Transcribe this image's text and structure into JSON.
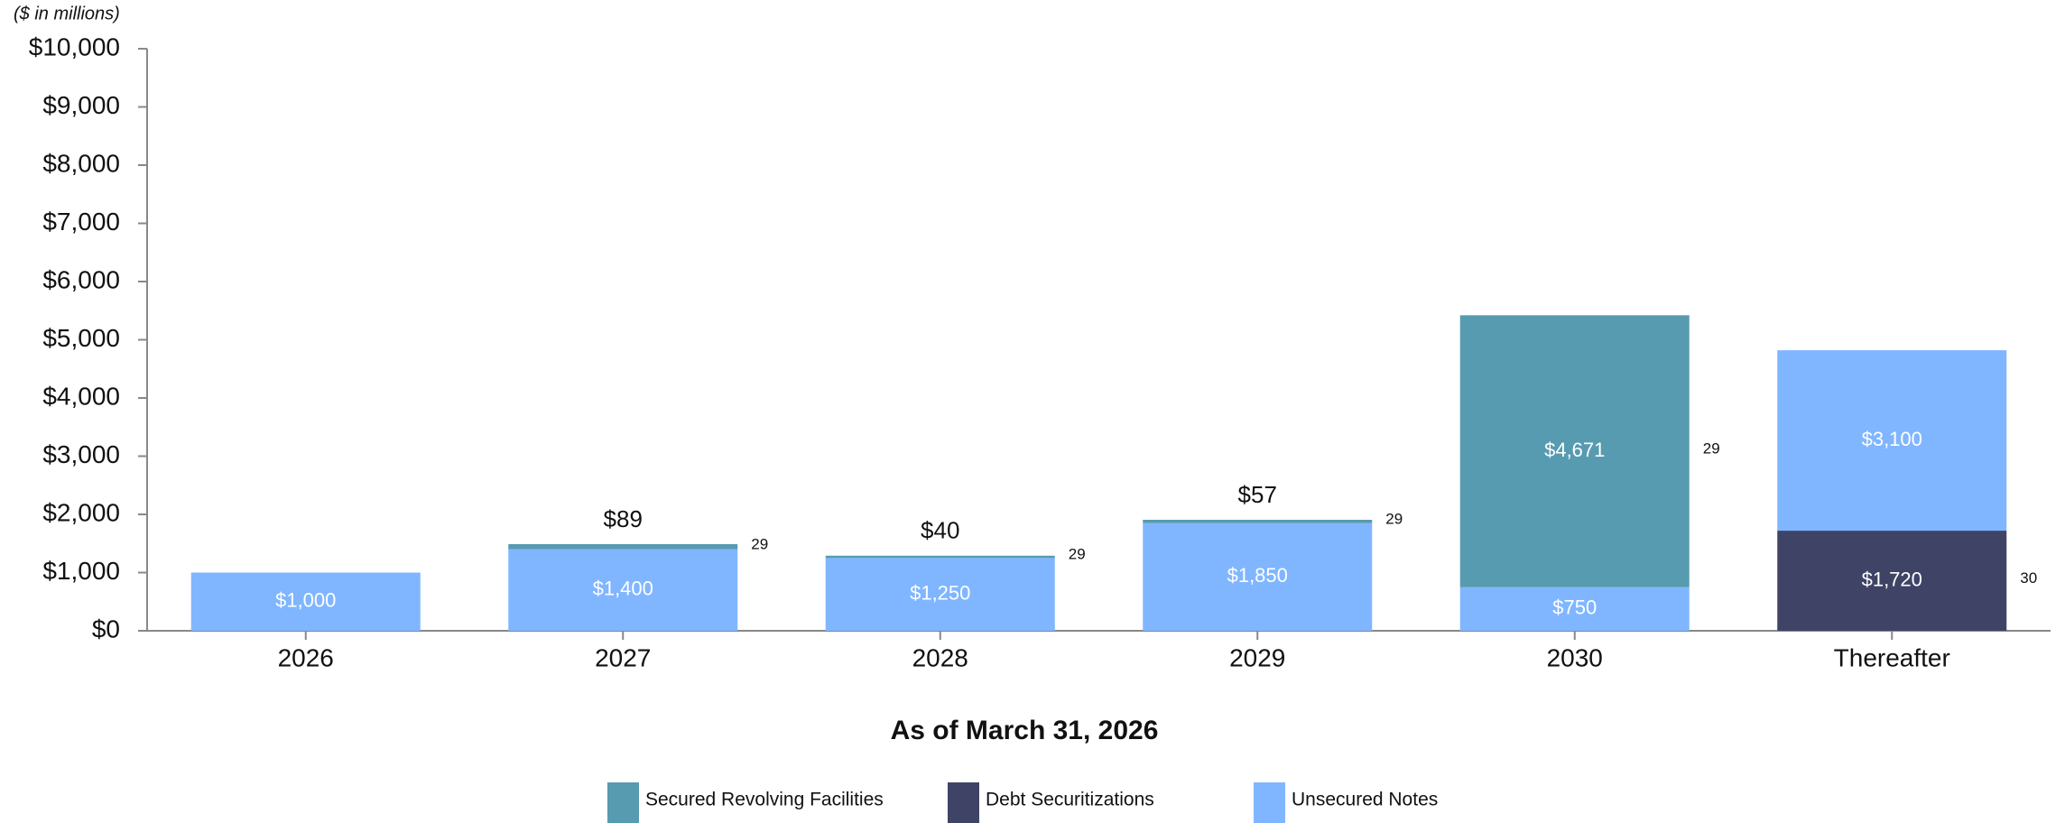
{
  "chart_data": {
    "type": "stacked_bar",
    "ylabel": "($ in millions)",
    "xlabel": "As of March 31, 2026",
    "categories": [
      "2026",
      "2027",
      "2028",
      "2029",
      "2030",
      "Thereafter"
    ],
    "series": [
      {
        "name": "Debt Securitizations",
        "color": "#3f4466",
        "values": [
          null,
          null,
          null,
          null,
          null,
          1720
        ],
        "value_labels": [
          null,
          null,
          null,
          null,
          null,
          "$1,720"
        ]
      },
      {
        "name": "Unsecured Notes",
        "color": "#80b6ff",
        "values": [
          1000,
          1400,
          1250,
          1850,
          750,
          3100
        ],
        "value_labels": [
          "$1,000",
          "$1,400",
          "$1,250",
          "$1,850",
          "$750",
          "$3,100"
        ]
      },
      {
        "name": "Secured Revolving Facilities",
        "color": "#579bb1",
        "values": [
          null,
          89,
          40,
          57,
          4671,
          null
        ],
        "value_labels": [
          null,
          "$89",
          "$40",
          "$57",
          "$4,671",
          null
        ]
      }
    ],
    "legend_order": [
      "Secured Revolving Facilities",
      "Debt Securitizations",
      "Unsecured Notes"
    ],
    "footnotes": [
      null,
      "29",
      "29",
      "29",
      "29",
      "30"
    ],
    "ylim": [
      0,
      10000
    ],
    "yticks": [
      {
        "value": 0,
        "label": "$0"
      },
      {
        "value": 1000,
        "label": "$1,000"
      },
      {
        "value": 2000,
        "label": "$2,000"
      },
      {
        "value": 3000,
        "label": "$3,000"
      },
      {
        "value": 4000,
        "label": "$4,000"
      },
      {
        "value": 5000,
        "label": "$5,000"
      },
      {
        "value": 6000,
        "label": "$6,000"
      },
      {
        "value": 7000,
        "label": "$7,000"
      },
      {
        "value": 8000,
        "label": "$8,000"
      },
      {
        "value": 9000,
        "label": "$9,000"
      },
      {
        "value": 10000,
        "label": "$10,000"
      }
    ],
    "grid": false,
    "legend": "bottom"
  }
}
